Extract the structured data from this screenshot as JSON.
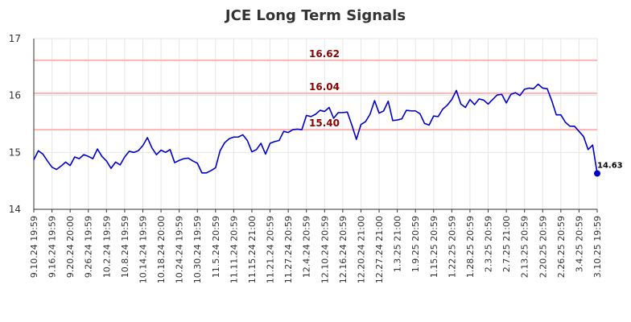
{
  "chart_data": {
    "type": "line",
    "title": "JCE Long Term Signals",
    "xlabel": "",
    "ylabel": "",
    "ylim": [
      14,
      17
    ],
    "y_ticks": [
      14,
      15,
      16,
      17
    ],
    "grid": true,
    "x_tick_labels": [
      "9.10.24 19:59",
      "9.16.24 19:59",
      "9.20.24 20:00",
      "9.26.24 19:59",
      "10.2.24 19:59",
      "10.8.24 19:59",
      "10.14.24 19:59",
      "10.18.24 20:00",
      "10.24.24 19:59",
      "10.30.24 19:59",
      "11.5.24 20:59",
      "11.11.24 20:59",
      "11.15.24 21:00",
      "11.21.24 20:59",
      "11.27.24 20:59",
      "12.4.24 20:59",
      "12.10.24 20:59",
      "12.16.24 20:59",
      "12.20.24 21:00",
      "12.27.24 21:00",
      "1.3.25 21:00",
      "1.9.25 20:59",
      "1.15.25 20:59",
      "1.22.25 20:59",
      "1.28.25 20:59",
      "2.3.25 20:59",
      "2.7.25 21:00",
      "2.13.25 20:59",
      "2.20.25 20:59",
      "2.26.25 20:59",
      "3.4.25 20:59",
      "3.10.25 19:59"
    ],
    "levels": [
      {
        "label": "16.62",
        "value": 16.62
      },
      {
        "label": "16.04",
        "value": 16.04
      },
      {
        "label": "15.40",
        "value": 15.4
      }
    ],
    "series": [
      {
        "values": [
          14.87,
          15.03,
          14.97,
          14.85,
          14.74,
          14.7,
          14.76,
          14.83,
          14.77,
          14.92,
          14.89,
          14.96,
          14.93,
          14.89,
          15.06,
          14.93,
          14.85,
          14.72,
          14.83,
          14.78,
          14.92,
          15.02,
          15.0,
          15.03,
          15.12,
          15.26,
          15.08,
          14.96,
          15.04,
          15.0,
          15.05,
          14.82,
          14.86,
          14.89,
          14.9,
          14.85,
          14.81,
          14.64,
          14.64,
          14.68,
          14.73,
          15.03,
          15.17,
          15.24,
          15.27,
          15.27,
          15.31,
          15.21,
          15.01,
          15.05,
          15.16,
          14.97,
          15.16,
          15.19,
          15.21,
          15.37,
          15.35,
          15.4,
          15.41,
          15.4,
          15.65,
          15.63,
          15.67,
          15.74,
          15.72,
          15.79,
          15.6,
          15.7,
          15.7,
          15.71,
          15.48,
          15.23,
          15.49,
          15.54,
          15.67,
          15.91,
          15.69,
          15.73,
          15.9,
          15.56,
          15.57,
          15.59,
          15.74,
          15.73,
          15.73,
          15.68,
          15.51,
          15.48,
          15.64,
          15.63,
          15.76,
          15.83,
          15.93,
          16.09,
          15.85,
          15.79,
          15.93,
          15.84,
          15.94,
          15.92,
          15.85,
          15.93,
          16.01,
          16.02,
          15.87,
          16.02,
          16.05,
          16.0,
          16.11,
          16.13,
          16.12,
          16.2,
          16.13,
          16.12,
          15.91,
          15.66,
          15.66,
          15.53,
          15.46,
          15.46,
          15.37,
          15.28,
          15.05,
          15.13,
          14.63
        ],
        "color": "#0000cc"
      }
    ],
    "last_value_label": "14.63",
    "level_line_color": "#ffb3b3",
    "level_label_color": "#8b0000"
  }
}
